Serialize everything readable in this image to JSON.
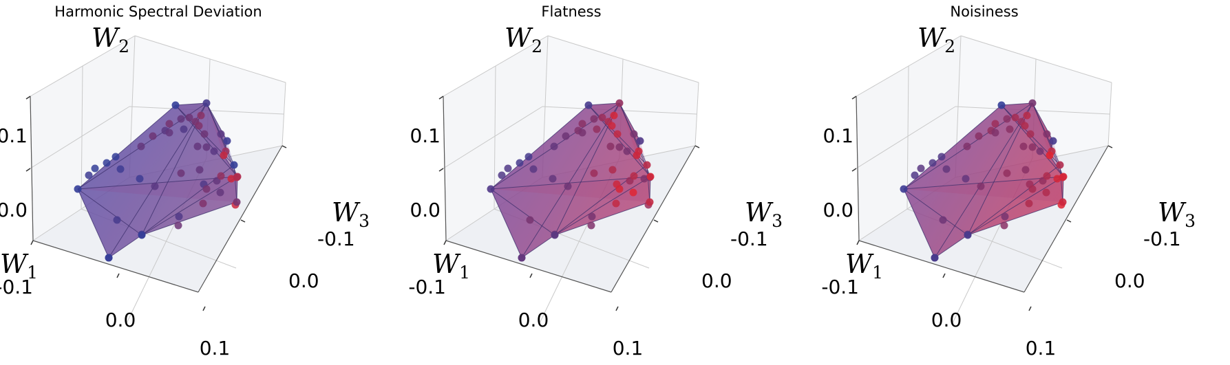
{
  "chart_data": [
    {
      "type": "3d-scatter-convex-hull",
      "title": "Harmonic Spectral Deviation",
      "axes": {
        "x": "W1",
        "y": "W2",
        "z": "W3"
      },
      "axis_labels": {
        "x": {
          "main": "W",
          "sub": "1"
        },
        "y": {
          "main": "W",
          "sub": "2"
        },
        "z": {
          "main": "W",
          "sub": "3"
        }
      },
      "ticks": {
        "w1": [
          "-0.1",
          "0.0",
          "0.1"
        ],
        "w2": [
          "0.0",
          "0.1"
        ],
        "w3": [
          "-0.1",
          "0.0"
        ]
      },
      "grid": true,
      "hull_fill": "#6a5fb0",
      "point_color_scale": [
        "#2b3f9e",
        "#e8232c"
      ],
      "point_redness": [
        0.05,
        0.05,
        0.1,
        0.05,
        0.1,
        0.3,
        0.35,
        0.25,
        0.4,
        0.3,
        0.35,
        0.2,
        0.3,
        0.4,
        0.45,
        0.5,
        0.35,
        0.3,
        0.3,
        0.25,
        0.1,
        0.25,
        0.35,
        0.3,
        0.2,
        0.3,
        0.55,
        0.6,
        0.3,
        0.4,
        0.15,
        0.15,
        0.2,
        0.35,
        0.45,
        0.85,
        0.85,
        0.75,
        0.1,
        0.25
      ],
      "vertex_redness": [
        0.05,
        0.05,
        0.05,
        0.4,
        0.7,
        0.8,
        0.15,
        0.05,
        0.1,
        0.05
      ]
    },
    {
      "type": "3d-scatter-convex-hull",
      "title": "Flatness",
      "axes": {
        "x": "W1",
        "y": "W2",
        "z": "W3"
      },
      "axis_labels": {
        "x": {
          "main": "W",
          "sub": "1"
        },
        "y": {
          "main": "W",
          "sub": "2"
        },
        "z": {
          "main": "W",
          "sub": "3"
        }
      },
      "ticks": {
        "w1": [
          "-0.1",
          "0.0",
          "0.1"
        ],
        "w2": [
          "0.0",
          "0.1"
        ],
        "w3": [
          "-0.1",
          "0.0"
        ]
      },
      "grid": true,
      "hull_fill": "#8e5aaa",
      "point_color_scale": [
        "#2b3f9e",
        "#e8232c"
      ],
      "point_redness": [
        0.15,
        0.2,
        0.2,
        0.15,
        0.25,
        0.3,
        0.35,
        0.45,
        0.5,
        0.45,
        0.6,
        0.55,
        0.4,
        0.7,
        0.85,
        0.9,
        0.8,
        0.5,
        0.45,
        0.4,
        0.3,
        0.35,
        0.6,
        0.7,
        0.85,
        0.6,
        0.75,
        0.85,
        0.95,
        0.9,
        0.4,
        0.35,
        0.4,
        0.45,
        0.8,
        0.6,
        0.45,
        0.4,
        0.25,
        0.4
      ],
      "vertex_redness": [
        0.2,
        0.3,
        0.25,
        0.8,
        0.9,
        0.85,
        0.55,
        0.15,
        0.2,
        0.75
      ]
    },
    {
      "type": "3d-scatter-convex-hull",
      "title": "Noisiness",
      "axes": {
        "x": "W1",
        "y": "W2",
        "z": "W3"
      },
      "axis_labels": {
        "x": {
          "main": "W",
          "sub": "1"
        },
        "y": {
          "main": "W",
          "sub": "2"
        },
        "z": {
          "main": "W",
          "sub": "3"
        }
      },
      "ticks": {
        "w1": [
          "-0.1",
          "0.0",
          "0.1"
        ],
        "w2": [
          "0.0",
          "0.1"
        ],
        "w3": [
          "-0.1",
          "0.0"
        ]
      },
      "grid": true,
      "hull_fill": "#9c5ca8",
      "point_color_scale": [
        "#2b3f9e",
        "#e8232c"
      ],
      "point_redness": [
        0.2,
        0.25,
        0.2,
        0.2,
        0.3,
        0.45,
        0.5,
        0.55,
        0.6,
        0.5,
        0.65,
        0.5,
        0.45,
        0.6,
        0.7,
        0.75,
        0.65,
        0.5,
        0.5,
        0.4,
        0.3,
        0.45,
        0.55,
        0.5,
        0.6,
        0.55,
        0.7,
        0.8,
        0.7,
        0.65,
        0.35,
        0.3,
        0.4,
        0.5,
        0.7,
        0.95,
        0.9,
        0.85,
        0.2,
        0.45
      ],
      "vertex_redness": [
        0.1,
        0.15,
        0.15,
        0.85,
        0.9,
        0.95,
        0.4,
        0.05,
        0.15,
        0.7
      ]
    }
  ]
}
